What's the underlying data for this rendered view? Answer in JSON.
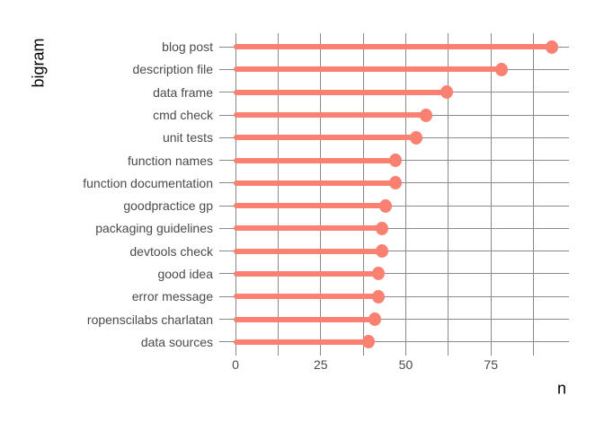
{
  "chart_data": {
    "type": "bar",
    "variant": "horizontal-lollipop",
    "title": "",
    "xlabel": "n",
    "ylabel": "bigram",
    "categories": [
      "blog post",
      "description file",
      "data frame",
      "cmd check",
      "unit tests",
      "function names",
      "function documentation",
      "goodpractice gp",
      "packaging guidelines",
      "devtools check",
      "good idea",
      "error message",
      "ropenscilabs charlatan",
      "data sources"
    ],
    "values": [
      93,
      78,
      62,
      56,
      53,
      47,
      47,
      44,
      43,
      43,
      42,
      42,
      41,
      39
    ],
    "xlim": [
      -4.75,
      97.9
    ],
    "x_major_ticks": [
      0,
      25,
      50,
      75
    ],
    "x_major_tick_labels": [
      "0",
      "25",
      "50",
      "75"
    ],
    "x_minor_ticks": [
      12.5,
      37.5,
      62.5,
      87.5
    ],
    "grid": true,
    "legend": "none",
    "colors": {
      "lollipop": "#FA8072",
      "gridline": "#8A8A8A",
      "axis_text": "#4A4A4A",
      "axis_title": "#000000",
      "background": "#FFFFFF"
    }
  }
}
